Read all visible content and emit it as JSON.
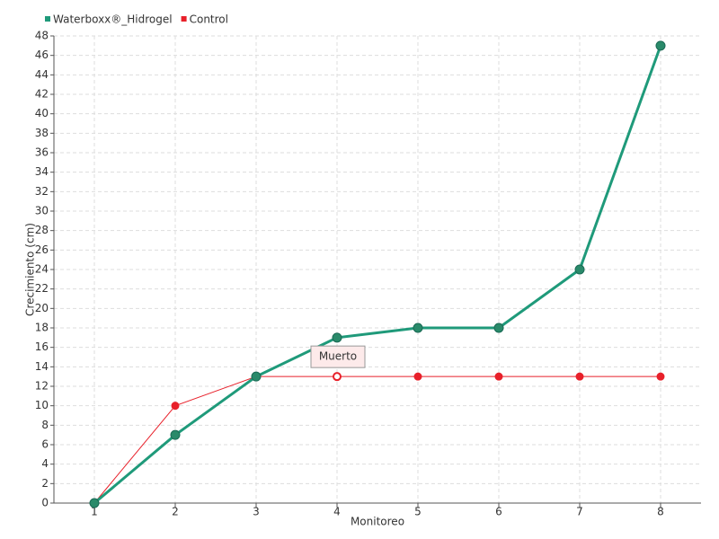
{
  "chart_data": {
    "type": "line",
    "x_label": "Monitoreo",
    "y_label": "Crecimiento (cm)",
    "categories": [
      "1",
      "2",
      "3",
      "4",
      "5",
      "6",
      "7",
      "8"
    ],
    "series": [
      {
        "name": "Waterboxx®_Hidrogel",
        "color": "#1f9a7a",
        "values": [
          0,
          7,
          13,
          17,
          18,
          18,
          24,
          47
        ]
      },
      {
        "name": "Control",
        "color": "#e8202a",
        "values": [
          0,
          10,
          13,
          13,
          13,
          13,
          13,
          13
        ]
      }
    ],
    "annotation": "Muerto",
    "ylim": [
      0,
      48
    ],
    "yticks": [
      0,
      2,
      4,
      6,
      8,
      10,
      12,
      14,
      16,
      18,
      20,
      22,
      24,
      26,
      28,
      30,
      32,
      34,
      36,
      38,
      40,
      42,
      44,
      46,
      48
    ],
    "grid": true,
    "legend": "top-left"
  }
}
